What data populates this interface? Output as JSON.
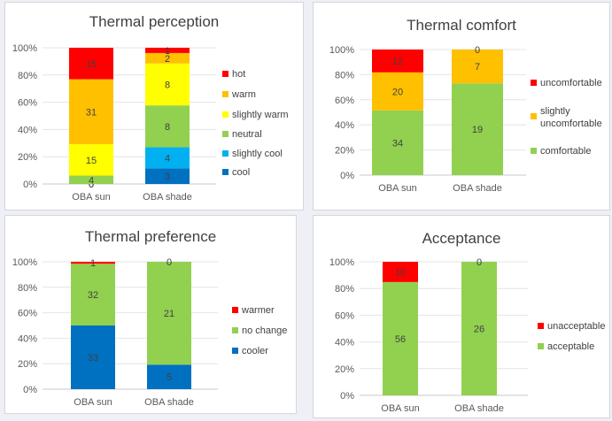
{
  "chart_data": [
    {
      "type": "bar",
      "stacked": true,
      "title": "Thermal perception",
      "categories": [
        "OBA sun",
        "OBA shade"
      ],
      "y_ticks": [
        "0%",
        "20%",
        "40%",
        "60%",
        "80%",
        "100%"
      ],
      "ylim": [
        0,
        100
      ],
      "legend_position": "right",
      "series": [
        {
          "name": "cool",
          "color": "#0070c0",
          "values": [
            0,
            3
          ]
        },
        {
          "name": "slightly cool",
          "color": "#00b0f0",
          "values": [
            0,
            4
          ]
        },
        {
          "name": "neutral",
          "color": "#92d050",
          "values": [
            4,
            8
          ]
        },
        {
          "name": "slightly warm",
          "color": "#ffff00",
          "values": [
            15,
            8
          ]
        },
        {
          "name": "warm",
          "color": "#ffc000",
          "values": [
            31,
            2
          ]
        },
        {
          "name": "hot",
          "color": "#ff0000",
          "values": [
            15,
            1
          ]
        }
      ]
    },
    {
      "type": "bar",
      "stacked": true,
      "title": "Thermal comfort",
      "categories": [
        "OBA sun",
        "OBA shade"
      ],
      "y_ticks": [
        "0%",
        "20%",
        "40%",
        "60%",
        "80%",
        "100%"
      ],
      "ylim": [
        0,
        100
      ],
      "legend_position": "right",
      "series": [
        {
          "name": "comfortable",
          "color": "#92d050",
          "values": [
            34,
            19
          ]
        },
        {
          "name": "slightly uncomfortable",
          "color": "#ffc000",
          "values": [
            20,
            7
          ]
        },
        {
          "name": "uncomfortable",
          "color": "#ff0000",
          "values": [
            12,
            0
          ]
        }
      ]
    },
    {
      "type": "bar",
      "stacked": true,
      "title": "Thermal preference",
      "categories": [
        "OBA sun",
        "OBA shade"
      ],
      "y_ticks": [
        "0%",
        "20%",
        "40%",
        "60%",
        "80%",
        "100%"
      ],
      "ylim": [
        0,
        100
      ],
      "legend_position": "right",
      "series": [
        {
          "name": "cooler",
          "color": "#0070c0",
          "values": [
            33,
            5
          ]
        },
        {
          "name": "no change",
          "color": "#92d050",
          "values": [
            32,
            21
          ]
        },
        {
          "name": "warmer",
          "color": "#ff0000",
          "values": [
            1,
            0
          ]
        }
      ]
    },
    {
      "type": "bar",
      "stacked": true,
      "title": "Acceptance",
      "categories": [
        "OBA sun",
        "OBA shade"
      ],
      "y_ticks": [
        "0%",
        "20%",
        "40%",
        "60%",
        "80%",
        "100%"
      ],
      "ylim": [
        0,
        100
      ],
      "legend_position": "right",
      "series": [
        {
          "name": "acceptable",
          "color": "#92d050",
          "values": [
            56,
            26
          ]
        },
        {
          "name": "unacceptable",
          "color": "#ff0000",
          "values": [
            10,
            0
          ]
        }
      ]
    }
  ]
}
